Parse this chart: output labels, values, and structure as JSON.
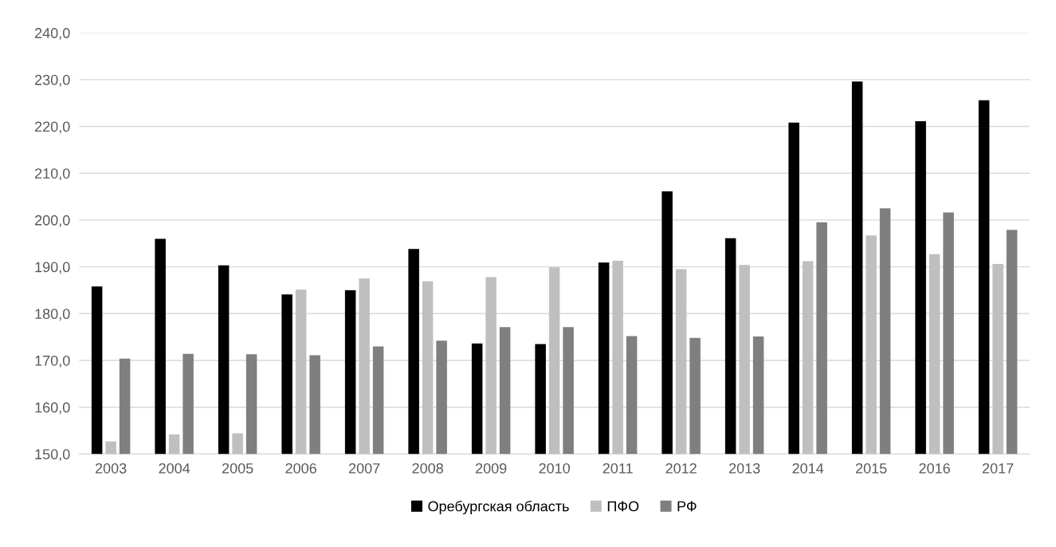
{
  "chart_data": {
    "type": "bar",
    "categories": [
      "2003",
      "2004",
      "2005",
      "2006",
      "2007",
      "2008",
      "2009",
      "2010",
      "2011",
      "2012",
      "2013",
      "2014",
      "2015",
      "2016",
      "2017"
    ],
    "series": [
      {
        "name": "Оребургская область",
        "color": "#000000",
        "values": [
          185.8,
          196.0,
          190.3,
          184.1,
          185.0,
          193.8,
          173.6,
          173.5,
          190.9,
          206.1,
          196.1,
          220.8,
          229.6,
          221.1,
          225.6
        ]
      },
      {
        "name": "ПФО",
        "color": "#bfbfbf",
        "values": [
          152.7,
          154.2,
          154.4,
          185.1,
          187.5,
          186.9,
          187.8,
          189.9,
          191.3,
          189.5,
          190.4,
          191.2,
          196.7,
          192.7,
          190.6
        ]
      },
      {
        "name": "РФ",
        "color": "#7f7f7f",
        "values": [
          170.4,
          171.4,
          171.3,
          171.1,
          173.0,
          174.2,
          177.1,
          177.1,
          175.2,
          174.8,
          175.1,
          199.5,
          202.5,
          201.6,
          197.9
        ]
      }
    ],
    "ylim": [
      150,
      240
    ],
    "yticks": [
      {
        "value": 150,
        "label": "150,0"
      },
      {
        "value": 160,
        "label": "160,0"
      },
      {
        "value": 170,
        "label": "170,0"
      },
      {
        "value": 180,
        "label": "180,0"
      },
      {
        "value": 190,
        "label": "190,0"
      },
      {
        "value": 200,
        "label": "200,0"
      },
      {
        "value": 210,
        "label": "210,0"
      },
      {
        "value": 220,
        "label": "220,0"
      },
      {
        "value": 230,
        "label": "230,0"
      },
      {
        "value": 240,
        "label": "240,0"
      }
    ],
    "grid": "y",
    "legend": "bottom"
  }
}
